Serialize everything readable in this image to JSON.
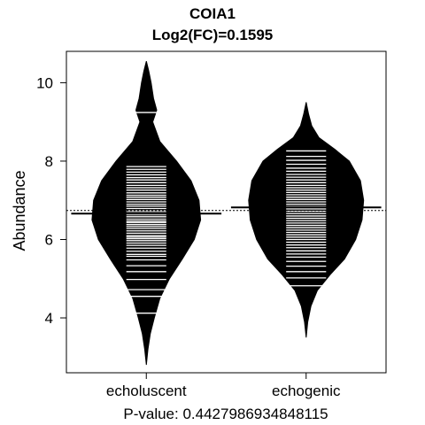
{
  "chart_data": {
    "type": "beanplot",
    "title": "COIA1",
    "subtitle": "Log2(FC)=0.1595",
    "ylabel": "Abundance",
    "xlabel": "P-value: 0.4427986934848115",
    "categories": [
      "echoluscent",
      "echogenic"
    ],
    "ylim": [
      2.6,
      10.8
    ],
    "yticks": [
      4,
      6,
      8,
      10
    ],
    "overall_mean": 6.74,
    "groups": [
      {
        "name": "echoluscent",
        "mean": 6.66,
        "density": [
          {
            "y": 2.8,
            "w": 0.0
          },
          {
            "y": 3.2,
            "w": 0.02
          },
          {
            "y": 3.6,
            "w": 0.05
          },
          {
            "y": 4.0,
            "w": 0.1
          },
          {
            "y": 4.5,
            "w": 0.17
          },
          {
            "y": 5.0,
            "w": 0.29
          },
          {
            "y": 5.5,
            "w": 0.45
          },
          {
            "y": 6.0,
            "w": 0.6
          },
          {
            "y": 6.5,
            "w": 0.68
          },
          {
            "y": 7.0,
            "w": 0.66
          },
          {
            "y": 7.5,
            "w": 0.56
          },
          {
            "y": 8.0,
            "w": 0.38
          },
          {
            "y": 8.5,
            "w": 0.17
          },
          {
            "y": 9.0,
            "w": 0.08
          },
          {
            "y": 9.3,
            "w": 0.13
          },
          {
            "y": 9.6,
            "w": 0.09
          },
          {
            "y": 10.0,
            "w": 0.06
          },
          {
            "y": 10.3,
            "w": 0.03
          },
          {
            "y": 10.55,
            "w": 0.0
          }
        ],
        "values": [
          4.12,
          4.55,
          4.72,
          4.98,
          5.18,
          5.33,
          5.48,
          5.57,
          5.62,
          5.7,
          5.78,
          5.85,
          5.91,
          5.97,
          6.02,
          6.06,
          6.1,
          6.16,
          6.22,
          6.28,
          6.33,
          6.38,
          6.43,
          6.47,
          6.52,
          6.58,
          6.63,
          6.68,
          6.73,
          6.79,
          6.85,
          6.9,
          6.96,
          7.02,
          7.08,
          7.13,
          7.19,
          7.26,
          7.32,
          7.38,
          7.45,
          7.52,
          7.58,
          7.65,
          7.72,
          7.79,
          7.86,
          9.24
        ]
      },
      {
        "name": "echogenic",
        "mean": 6.82,
        "density": [
          {
            "y": 3.5,
            "w": 0.0
          },
          {
            "y": 3.9,
            "w": 0.02
          },
          {
            "y": 4.3,
            "w": 0.06
          },
          {
            "y": 4.7,
            "w": 0.14
          },
          {
            "y": 5.1,
            "w": 0.3
          },
          {
            "y": 5.5,
            "w": 0.48
          },
          {
            "y": 6.0,
            "w": 0.62
          },
          {
            "y": 6.5,
            "w": 0.7
          },
          {
            "y": 7.0,
            "w": 0.72
          },
          {
            "y": 7.5,
            "w": 0.68
          },
          {
            "y": 8.0,
            "w": 0.54
          },
          {
            "y": 8.3,
            "w": 0.36
          },
          {
            "y": 8.6,
            "w": 0.16
          },
          {
            "y": 8.9,
            "w": 0.07
          },
          {
            "y": 9.2,
            "w": 0.03
          },
          {
            "y": 9.5,
            "w": 0.0
          }
        ],
        "values": [
          4.82,
          5.02,
          5.18,
          5.32,
          5.44,
          5.55,
          5.63,
          5.71,
          5.79,
          5.86,
          5.93,
          6.0,
          6.06,
          6.12,
          6.18,
          6.24,
          6.3,
          6.36,
          6.42,
          6.48,
          6.54,
          6.6,
          6.66,
          6.72,
          6.78,
          6.84,
          6.9,
          6.96,
          7.02,
          7.08,
          7.14,
          7.2,
          7.26,
          7.32,
          7.38,
          7.45,
          7.52,
          7.59,
          7.66,
          7.74,
          7.82,
          7.92,
          8.02,
          8.12,
          8.26
        ]
      }
    ],
    "colors": {
      "bean": "#000000",
      "line": "#ffffff",
      "axis": "#000000"
    }
  }
}
